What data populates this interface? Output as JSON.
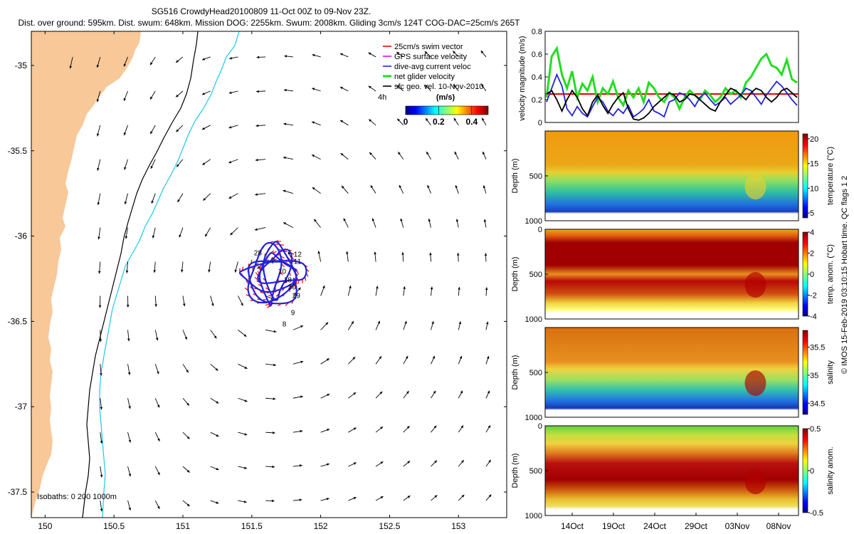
{
  "header": {
    "title": "SG516 CrowdyHead20100809 11-Oct 00Z to 09-Nov 23Z.",
    "subtitle": "Dist. over ground: 595km. Dist. swum: 648km. Mission DOG: 2255km. Swum: 2008km. Gliding 3cm/s 124T COG-DAC=25cm/s 265T"
  },
  "side_note": "© IMOS 15-Feb-2019 03:10:15 Hobart time. QC flags 1  2",
  "colors": {
    "land": "#F8C898",
    "isobath_200": "#000000",
    "isobath_1000": "#1CC8E8",
    "track": "#2222DD",
    "swim": "#EE0000",
    "net": "#22DD22",
    "geo": "#000000",
    "frame": "#000000"
  },
  "chart_data": [
    {
      "id": "map",
      "type": "scatter",
      "title": "",
      "xlabel": "",
      "ylabel": "",
      "xlim": [
        149.9,
        153.35
      ],
      "ylim": [
        -37.65,
        -34.8
      ],
      "xticks": [
        "150",
        "150.5",
        "151",
        "151.5",
        "152",
        "152.5",
        "153"
      ],
      "yticks": [
        "-35",
        "-35.5",
        "-36",
        "-36.5",
        "-37",
        "-37.5"
      ],
      "legend": {
        "position": "top-right",
        "entries": [
          "25cm/s swim vector",
          "GPS surface velocity",
          "dive-avg current veloc",
          "net glider velocity",
          "sfc geo. vel. 10-Nov-2010"
        ]
      },
      "scale_label": "4h",
      "colorbar": {
        "label": "(m/s)",
        "ticks": [
          "0",
          "0.2",
          "0.4"
        ],
        "range": [
          0,
          0.5
        ],
        "colormap": "jet"
      },
      "isobath_label": "Isobaths: 0   200   1000m",
      "track_labels": [
        "28",
        "12",
        "11",
        "7",
        "10",
        "18",
        "30",
        "29",
        "9",
        "8"
      ],
      "eddy_center": [
        151.66,
        -36.22
      ],
      "geo_velocity_field": "cyclonic eddy around track; southward flow near coast"
    },
    {
      "id": "velocity",
      "type": "line",
      "ylabel": "velocity magnitude (m/s)",
      "ylim": [
        0,
        0.8
      ],
      "yticks": [
        "0",
        "0.2",
        "0.4",
        "0.6",
        "0.8"
      ],
      "grid": false,
      "series": [
        {
          "reference": 0.25
        },
        {
          "values": [
            0.22,
            0.58,
            0.65,
            0.42,
            0.3,
            0.45,
            0.22,
            0.34,
            0.28,
            0.4,
            0.18,
            0.3,
            0.25,
            0.36,
            0.22,
            0.15,
            0.28,
            0.22,
            0.3,
            0.18,
            0.35,
            0.3,
            0.22,
            0.18,
            0.26,
            0.22,
            0.12,
            0.22,
            0.28,
            0.24,
            0.2,
            0.28,
            0.24,
            0.18,
            0.22,
            0.3,
            0.25,
            0.28,
            0.22,
            0.35,
            0.4,
            0.48,
            0.56,
            0.6,
            0.5,
            0.48,
            0.42,
            0.55,
            0.38,
            0.35
          ]
        },
        {
          "values": [
            0.18,
            0.3,
            0.42,
            0.32,
            0.12,
            0.06,
            0.14,
            0.08,
            0.05,
            0.14,
            0.22,
            0.18,
            0.1,
            0.06,
            0.12,
            0.08,
            0.15,
            0.05,
            0.08,
            0.12,
            0.2,
            0.1,
            0.08,
            0.05,
            0.18,
            0.2,
            0.26,
            0.24,
            0.2,
            0.14,
            0.22,
            0.26,
            0.2,
            0.15,
            0.18,
            0.22,
            0.16,
            0.2,
            0.24,
            0.3,
            0.28,
            0.22,
            0.16,
            0.24,
            0.3,
            0.36,
            0.32,
            0.26,
            0.2,
            0.15
          ]
        },
        {
          "values": [
            0.25,
            0.28,
            0.2,
            0.1,
            0.2,
            0.28,
            0.22,
            0.12,
            0.06,
            0.18,
            0.24,
            0.15,
            0.08,
            0.16,
            0.22,
            0.26,
            0.12,
            0.03,
            0.02,
            0.04,
            0.08,
            0.14,
            0.18,
            0.22,
            0.26,
            0.24,
            0.18,
            0.2,
            0.25,
            0.24,
            0.2,
            0.16,
            0.12,
            0.1,
            0.18,
            0.24,
            0.3,
            0.28,
            0.24,
            0.2,
            0.26,
            0.3,
            0.28,
            0.22,
            0.18,
            0.22,
            0.28,
            0.3,
            0.26,
            0.22
          ]
        }
      ]
    },
    {
      "id": "temperature",
      "type": "heatmap",
      "ylabel": "Depth (m)",
      "yticks": [
        "500",
        "1000"
      ],
      "ylim": [
        1000,
        0
      ],
      "colorbar": {
        "label": "temperature (°C)",
        "ticks": [
          "20",
          "15",
          "10",
          "5"
        ],
        "range": [
          4,
          21
        ]
      }
    },
    {
      "id": "temp_anom",
      "type": "heatmap",
      "ylabel": "Depth (m)",
      "yticks": [
        "0",
        "500",
        "1000"
      ],
      "ylim": [
        1000,
        0
      ],
      "colorbar": {
        "label": "temp. anom. (°C)",
        "ticks": [
          "4",
          "2",
          "0",
          "-2",
          "-4"
        ],
        "range": [
          -4,
          4
        ]
      }
    },
    {
      "id": "salinity",
      "type": "heatmap",
      "ylabel": "Depth (m)",
      "yticks": [
        "500",
        "1000"
      ],
      "ylim": [
        1000,
        0
      ],
      "colorbar": {
        "label": "salinity",
        "ticks": [
          "35.5",
          "35",
          "34.5"
        ],
        "range": [
          34.3,
          35.8
        ]
      }
    },
    {
      "id": "sal_anom",
      "type": "heatmap",
      "ylabel": "Depth (m)",
      "yticks": [
        "0",
        "500",
        "1000"
      ],
      "ylim": [
        1000,
        0
      ],
      "xticks": [
        "14Oct",
        "19Oct",
        "24Oct",
        "29Oct",
        "03Nov",
        "08Nov"
      ],
      "colorbar": {
        "label": "salinity anom.",
        "ticks": [
          "0.5",
          "0",
          "-0.5"
        ],
        "range": [
          -0.5,
          0.5
        ]
      }
    }
  ]
}
